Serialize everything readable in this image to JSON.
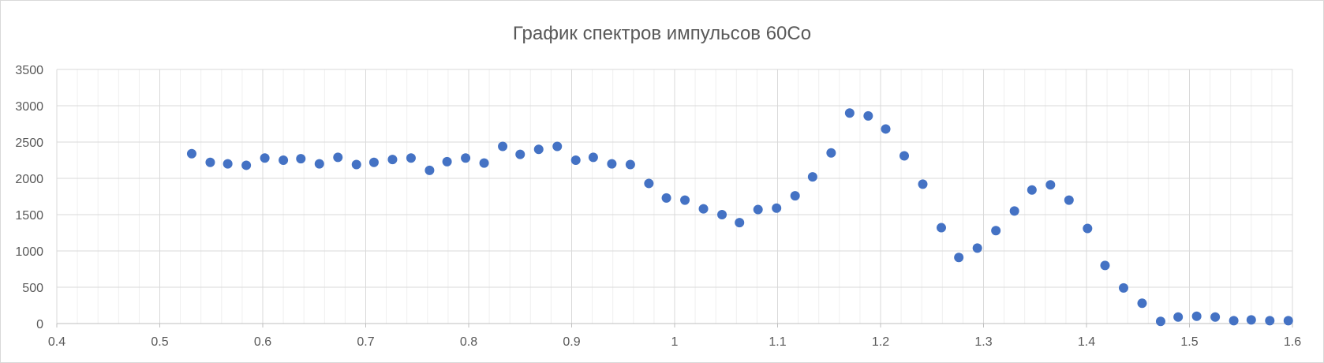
{
  "chart_data": {
    "type": "scatter",
    "title": "График спектров импульсов 60Co",
    "xlabel": "",
    "ylabel": "",
    "xlim": [
      0.4,
      1.6
    ],
    "ylim": [
      0,
      3500
    ],
    "x_ticks": [
      "0.4",
      "0.5",
      "0.6",
      "0.7",
      "0.8",
      "0.9",
      "1",
      "1.1",
      "1.2",
      "1.3",
      "1.4",
      "1.5",
      "1.6"
    ],
    "y_ticks": [
      "0",
      "500",
      "1000",
      "1500",
      "2000",
      "2500",
      "3000",
      "3500"
    ],
    "grid": "major and minor",
    "legend": "none",
    "colors": {
      "marker": "#4472c4",
      "grid_major": "#d9d9d9",
      "grid_minor": "#efefef",
      "axis": "#bfbfbf",
      "text": "#595959"
    },
    "x": [
      0.531,
      0.549,
      0.566,
      0.584,
      0.602,
      0.62,
      0.637,
      0.655,
      0.673,
      0.691,
      0.708,
      0.726,
      0.744,
      0.762,
      0.779,
      0.797,
      0.815,
      0.833,
      0.85,
      0.868,
      0.886,
      0.904,
      0.921,
      0.939,
      0.957,
      0.975,
      0.992,
      1.01,
      1.028,
      1.046,
      1.063,
      1.081,
      1.099,
      1.117,
      1.134,
      1.152,
      1.17,
      1.188,
      1.205,
      1.223,
      1.241,
      1.259,
      1.276,
      1.294,
      1.312,
      1.33,
      1.347,
      1.365,
      1.383,
      1.401,
      1.418,
      1.436,
      1.454,
      1.472,
      1.489,
      1.507,
      1.525,
      1.543,
      1.56,
      1.578,
      1.596
    ],
    "y": [
      2340,
      2220,
      2200,
      2180,
      2280,
      2250,
      2270,
      2200,
      2290,
      2190,
      2220,
      2260,
      2280,
      2110,
      2230,
      2280,
      2210,
      2440,
      2330,
      2400,
      2440,
      2250,
      2290,
      2200,
      2190,
      1930,
      1730,
      1700,
      1580,
      1500,
      1390,
      1570,
      1590,
      1760,
      2020,
      2350,
      2900,
      2860,
      2680,
      2310,
      1920,
      1320,
      910,
      1040,
      1280,
      1550,
      1840,
      1910,
      1700,
      1310,
      800,
      490,
      280,
      30,
      90,
      100,
      90,
      40,
      50,
      40,
      40
    ]
  }
}
